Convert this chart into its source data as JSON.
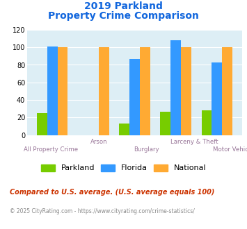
{
  "title_line1": "2019 Parkland",
  "title_line2": "Property Crime Comparison",
  "parkland": [
    25,
    0,
    13,
    27,
    28
  ],
  "florida": [
    101,
    0,
    87,
    108,
    83
  ],
  "national": [
    100,
    100,
    100,
    100,
    100
  ],
  "parkland_color": "#77cc00",
  "florida_color": "#3399ff",
  "national_color": "#ffaa33",
  "title_color": "#1166dd",
  "xlabel_color": "#997799",
  "background_color": "#ddeef5",
  "ylim": [
    0,
    120
  ],
  "yticks": [
    0,
    20,
    40,
    60,
    80,
    100,
    120
  ],
  "row1_labels": [
    "",
    "Arson",
    "",
    "Larceny & Theft",
    ""
  ],
  "row2_labels": [
    "All Property Crime",
    "",
    "Burglary",
    "",
    "Motor Vehicle Theft"
  ],
  "footnote1": "Compared to U.S. average. (U.S. average equals 100)",
  "footnote2": "© 2025 CityRating.com - https://www.cityrating.com/crime-statistics/",
  "footnote1_color": "#cc3300",
  "footnote2_color": "#888888",
  "legend_labels": [
    "Parkland",
    "Florida",
    "National"
  ],
  "bar_width": 0.25
}
